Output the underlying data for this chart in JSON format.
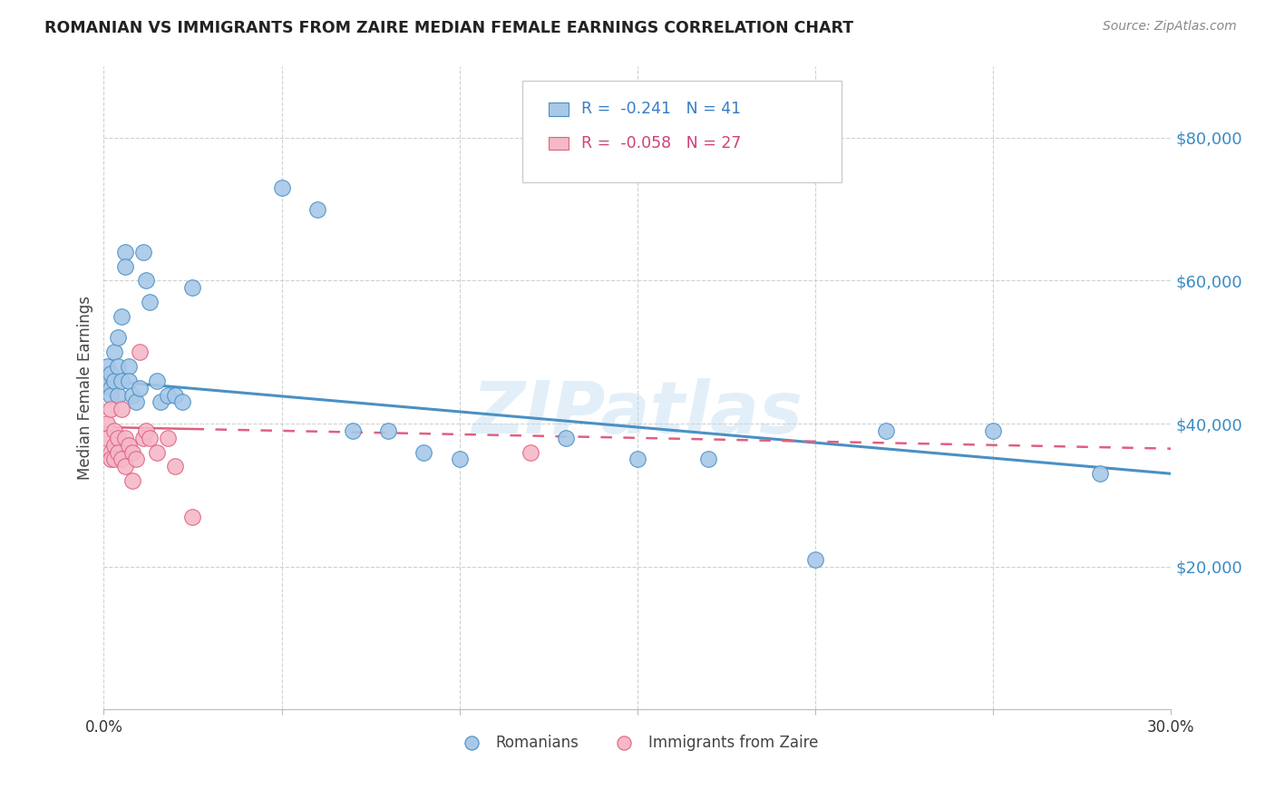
{
  "title": "ROMANIAN VS IMMIGRANTS FROM ZAIRE MEDIAN FEMALE EARNINGS CORRELATION CHART",
  "source": "Source: ZipAtlas.com",
  "ylabel": "Median Female Earnings",
  "yticks": [
    20000,
    40000,
    60000,
    80000
  ],
  "ytick_labels": [
    "$20,000",
    "$40,000",
    "$60,000",
    "$80,000"
  ],
  "ylim": [
    0,
    90000
  ],
  "xlim": [
    0.0,
    0.3
  ],
  "blue_color": "#a8c8e8",
  "pink_color": "#f4b8c8",
  "blue_line_color": "#4a90c4",
  "pink_line_color": "#e06080",
  "watermark": "ZIPatlas",
  "romanians_x": [
    0.001,
    0.001,
    0.002,
    0.002,
    0.002,
    0.003,
    0.003,
    0.004,
    0.004,
    0.004,
    0.005,
    0.005,
    0.006,
    0.006,
    0.007,
    0.007,
    0.008,
    0.009,
    0.01,
    0.011,
    0.012,
    0.013,
    0.015,
    0.016,
    0.018,
    0.02,
    0.022,
    0.025,
    0.05,
    0.06,
    0.07,
    0.08,
    0.09,
    0.1,
    0.13,
    0.15,
    0.17,
    0.2,
    0.22,
    0.25,
    0.28
  ],
  "romanians_y": [
    46000,
    48000,
    45000,
    44000,
    47000,
    50000,
    46000,
    52000,
    48000,
    44000,
    55000,
    46000,
    64000,
    62000,
    48000,
    46000,
    44000,
    43000,
    45000,
    64000,
    60000,
    57000,
    46000,
    43000,
    44000,
    44000,
    43000,
    59000,
    73000,
    70000,
    39000,
    39000,
    36000,
    35000,
    38000,
    35000,
    35000,
    21000,
    39000,
    39000,
    33000
  ],
  "zaire_x": [
    0.001,
    0.001,
    0.002,
    0.002,
    0.002,
    0.003,
    0.003,
    0.003,
    0.004,
    0.004,
    0.005,
    0.005,
    0.006,
    0.006,
    0.007,
    0.008,
    0.008,
    0.009,
    0.01,
    0.011,
    0.012,
    0.013,
    0.015,
    0.018,
    0.02,
    0.025,
    0.12
  ],
  "zaire_y": [
    40000,
    38000,
    42000,
    36000,
    35000,
    39000,
    37000,
    35000,
    38000,
    36000,
    42000,
    35000,
    38000,
    34000,
    37000,
    36000,
    32000,
    35000,
    50000,
    38000,
    39000,
    38000,
    36000,
    38000,
    34000,
    27000,
    36000
  ]
}
